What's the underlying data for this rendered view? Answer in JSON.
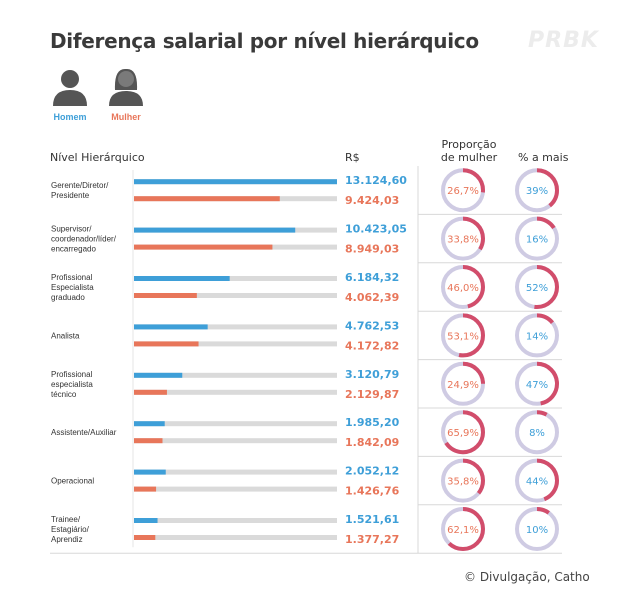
{
  "title": "Diferença salarial por nível hierárquico",
  "watermark": "PRBK",
  "legend": {
    "homem": {
      "label": "Homem",
      "color": "#3e9fd8"
    },
    "mulher": {
      "label": "Mulher",
      "color": "#e8765a"
    }
  },
  "headers": {
    "nivel": "Nível Hierárquico",
    "rs": "R$",
    "proporcao": "Proporção de mulher",
    "pct": "% a mais"
  },
  "credit": "© Divulgação, Catho",
  "colors": {
    "track": "#dadada",
    "ring": "#cfcbe3",
    "ring_fill": "#d24d6b",
    "divider": "#d8d8d8"
  },
  "chart_data": {
    "type": "bar",
    "xlim": [
      0,
      13124.6
    ],
    "categories": [
      {
        "lines": [
          "Gerente/Diretor/",
          "Presidente"
        ],
        "homem": 13124.6,
        "homem_label": "13.124,60",
        "mulher": 9424.03,
        "mulher_label": "9.424,03",
        "proporcao": 26.7,
        "proporcao_label": "26,7%",
        "pct_mais": 39,
        "pct_mais_label": "39%"
      },
      {
        "lines": [
          "Supervisor/",
          "coordenador/líder/",
          "encarregado"
        ],
        "homem": 10423.05,
        "homem_label": "10.423,05",
        "mulher": 8949.03,
        "mulher_label": "8.949,03",
        "proporcao": 33.8,
        "proporcao_label": "33,8%",
        "pct_mais": 16,
        "pct_mais_label": "16%"
      },
      {
        "lines": [
          "Profissional",
          "Especialista",
          "graduado"
        ],
        "homem": 6184.32,
        "homem_label": "6.184,32",
        "mulher": 4062.39,
        "mulher_label": "4.062,39",
        "proporcao": 46.0,
        "proporcao_label": "46,0%",
        "pct_mais": 52,
        "pct_mais_label": "52%"
      },
      {
        "lines": [
          "Analista"
        ],
        "homem": 4762.53,
        "homem_label": "4.762,53",
        "mulher": 4172.82,
        "mulher_label": "4.172,82",
        "proporcao": 53.1,
        "proporcao_label": "53,1%",
        "pct_mais": 14,
        "pct_mais_label": "14%"
      },
      {
        "lines": [
          "Profissional",
          "especialista",
          "técnico"
        ],
        "homem": 3120.79,
        "homem_label": "3.120,79",
        "mulher": 2129.87,
        "mulher_label": "2.129,87",
        "proporcao": 24.9,
        "proporcao_label": "24,9%",
        "pct_mais": 47,
        "pct_mais_label": "47%"
      },
      {
        "lines": [
          "Assistente/Auxiliar"
        ],
        "homem": 1985.2,
        "homem_label": "1.985,20",
        "mulher": 1842.09,
        "mulher_label": "1.842,09",
        "proporcao": 65.9,
        "proporcao_label": "65,9%",
        "pct_mais": 8,
        "pct_mais_label": "8%"
      },
      {
        "lines": [
          "Operacional"
        ],
        "homem": 2052.12,
        "homem_label": "2.052,12",
        "mulher": 1426.76,
        "mulher_label": "1.426,76",
        "proporcao": 35.8,
        "proporcao_label": "35,8%",
        "pct_mais": 44,
        "pct_mais_label": "44%"
      },
      {
        "lines": [
          "Trainee/",
          "Estagiário/",
          "Aprendiz"
        ],
        "homem": 1521.61,
        "homem_label": "1.521,61",
        "mulher": 1377.27,
        "mulher_label": "1.377,27",
        "proporcao": 62.1,
        "proporcao_label": "62,1%",
        "pct_mais": 10,
        "pct_mais_label": "10%"
      }
    ]
  }
}
